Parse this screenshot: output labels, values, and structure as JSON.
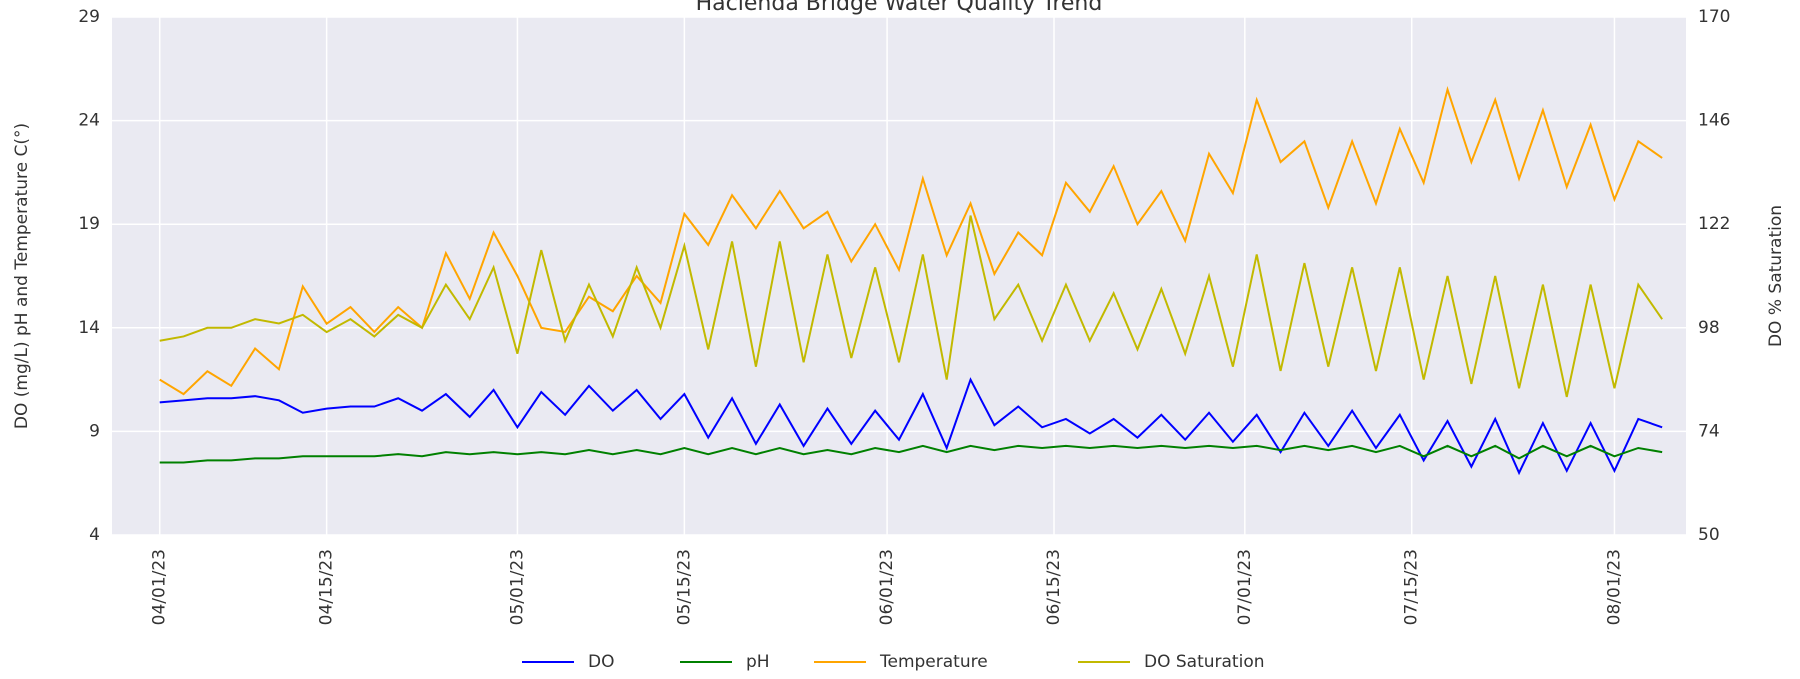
{
  "chart_data": {
    "type": "line",
    "title": "Hacienda Bridge Water Quality Trend",
    "y_label": "DO (mg/L) pH and Temperature C(°)",
    "y2_label": "DO % Saturation",
    "x": [
      "04/01/23",
      "04/03/23",
      "04/05/23",
      "04/07/23",
      "04/09/23",
      "04/11/23",
      "04/13/23",
      "04/15/23",
      "04/17/23",
      "04/19/23",
      "04/21/23",
      "04/23/23",
      "04/25/23",
      "04/27/23",
      "04/29/23",
      "05/01/23",
      "05/03/23",
      "05/05/23",
      "05/07/23",
      "05/09/23",
      "05/11/23",
      "05/13/23",
      "05/15/23",
      "05/17/23",
      "05/19/23",
      "05/21/23",
      "05/23/23",
      "05/25/23",
      "05/27/23",
      "05/29/23",
      "05/31/23",
      "06/02/23",
      "06/04/23",
      "06/06/23",
      "06/08/23",
      "06/10/23",
      "06/12/23",
      "06/14/23",
      "06/16/23",
      "06/18/23",
      "06/20/23",
      "06/22/23",
      "06/24/23",
      "06/26/23",
      "06/28/23",
      "06/30/23",
      "07/02/23",
      "07/04/23",
      "07/06/23",
      "07/08/23",
      "07/10/23",
      "07/12/23",
      "07/14/23",
      "07/16/23",
      "07/18/23",
      "07/20/23",
      "07/22/23",
      "07/24/23",
      "07/26/23",
      "07/28/23",
      "07/30/23",
      "08/01/23",
      "08/03/23",
      "08/05/23"
    ],
    "xlim": [
      "03/28/23",
      "08/07/23"
    ],
    "xticks": [
      "04/01/23",
      "04/15/23",
      "05/01/23",
      "05/15/23",
      "06/01/23",
      "06/15/23",
      "07/01/23",
      "07/15/23",
      "08/01/23"
    ],
    "ylim": [
      4,
      29
    ],
    "yticks": [
      4,
      9,
      14,
      19,
      24,
      29
    ],
    "y2lim": [
      50,
      170
    ],
    "y2ticks": [
      50,
      74,
      98,
      122,
      146,
      170
    ],
    "grid": true,
    "legend": "bottom",
    "series": [
      {
        "name": "DO",
        "color": "#0000ff",
        "values": [
          10.4,
          10.5,
          10.6,
          10.6,
          10.7,
          10.5,
          9.9,
          10.1,
          10.2,
          10.2,
          10.6,
          10.0,
          10.8,
          9.7,
          11.0,
          9.2,
          10.9,
          9.8,
          11.2,
          10.0,
          11.0,
          9.6,
          10.8,
          8.7,
          10.6,
          8.4,
          10.3,
          8.3,
          10.1,
          8.4,
          10.0,
          8.6,
          10.8,
          8.2,
          11.5,
          9.3,
          10.2,
          9.2,
          9.6,
          8.9,
          9.6,
          8.7,
          9.8,
          8.6,
          9.9,
          8.5,
          9.8,
          8.0,
          9.9,
          8.3,
          10.0,
          8.2,
          9.8,
          7.6,
          9.5,
          7.3,
          9.6,
          7.0,
          9.4,
          7.1,
          9.4,
          7.1,
          9.6,
          9.2
        ]
      },
      {
        "name": "pH",
        "color": "#008000",
        "values": [
          7.5,
          7.5,
          7.6,
          7.6,
          7.7,
          7.7,
          7.8,
          7.8,
          7.8,
          7.8,
          7.9,
          7.8,
          8.0,
          7.9,
          8.0,
          7.9,
          8.0,
          7.9,
          8.1,
          7.9,
          8.1,
          7.9,
          8.2,
          7.9,
          8.2,
          7.9,
          8.2,
          7.9,
          8.1,
          7.9,
          8.2,
          8.0,
          8.3,
          8.0,
          8.3,
          8.1,
          8.3,
          8.2,
          8.3,
          8.2,
          8.3,
          8.2,
          8.3,
          8.2,
          8.3,
          8.2,
          8.3,
          8.1,
          8.3,
          8.1,
          8.3,
          8.0,
          8.3,
          7.8,
          8.3,
          7.8,
          8.3,
          7.7,
          8.3,
          7.8,
          8.3,
          7.8,
          8.2,
          8.0
        ]
      },
      {
        "name": "Temperature",
        "color": "#ffa500",
        "values": [
          11.5,
          10.8,
          11.9,
          11.2,
          13.0,
          12.0,
          16.0,
          14.2,
          15.0,
          13.8,
          15.0,
          14.0,
          17.6,
          15.4,
          18.6,
          16.5,
          14.0,
          13.8,
          15.5,
          14.8,
          16.5,
          15.2,
          19.5,
          18.0,
          20.4,
          18.8,
          20.6,
          18.8,
          19.6,
          17.2,
          19.0,
          16.8,
          21.2,
          17.5,
          20.0,
          16.6,
          18.6,
          17.5,
          21.0,
          19.6,
          21.8,
          19.0,
          20.6,
          18.2,
          22.4,
          20.5,
          25.0,
          22.0,
          23.0,
          19.8,
          23.0,
          20.0,
          23.6,
          21.0,
          25.5,
          22.0,
          25.0,
          21.2,
          24.5,
          20.8,
          23.8,
          20.2,
          23.0,
          22.2
        ]
      },
      {
        "name": "DO Saturation",
        "color": "#c2b900",
        "axis": "y2",
        "values": [
          95,
          96,
          98,
          98,
          100,
          99,
          101,
          97,
          100,
          96,
          101,
          98,
          108,
          100,
          112,
          92,
          116,
          95,
          108,
          96,
          112,
          98,
          117,
          93,
          118,
          89,
          118,
          90,
          115,
          91,
          112,
          90,
          115,
          86,
          124,
          100,
          108,
          95,
          108,
          95,
          106,
          93,
          107,
          92,
          110,
          89,
          115,
          88,
          113,
          89,
          112,
          88,
          112,
          86,
          110,
          85,
          110,
          84,
          108,
          82,
          108,
          84,
          108,
          100
        ]
      }
    ]
  }
}
